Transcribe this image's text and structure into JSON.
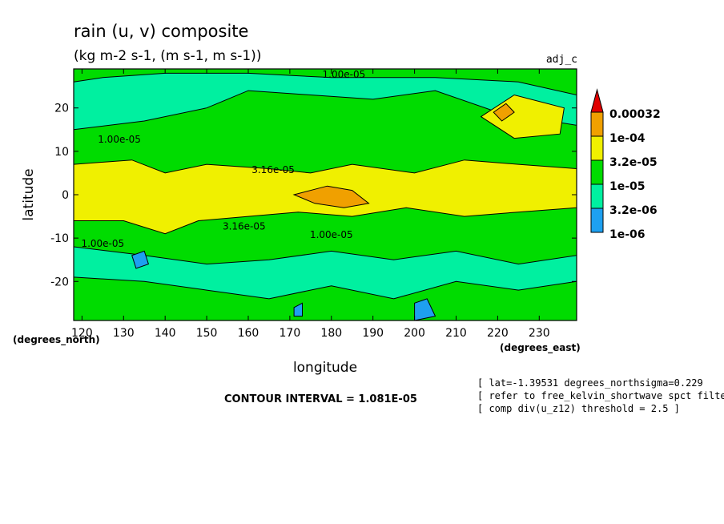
{
  "chart_data": {
    "type": "heatmap",
    "title": "rain (u, v) composite",
    "subtitle": "(kg m-2 s-1, (m s-1, m s-1))",
    "dataset_label": "adj_c",
    "xlabel": "longitude",
    "ylabel": "latitude",
    "x_unit_label": "(degrees_east)",
    "y_unit_label": "(degrees_north)",
    "xlim": [
      118,
      239
    ],
    "ylim": [
      -29,
      29
    ],
    "x_ticks": [
      120,
      130,
      140,
      150,
      160,
      170,
      180,
      190,
      200,
      210,
      220,
      230
    ],
    "y_ticks": [
      {
        "value": 20,
        "label": "20"
      },
      {
        "value": 10,
        "label": "10"
      },
      {
        "value": 0,
        "label": "0"
      },
      {
        "value": -10,
        "label": "-10"
      },
      {
        "value": -20,
        "label": "-20"
      }
    ],
    "levels": [
      "1e-06",
      "3.2e-06",
      "1e-05",
      "3.2e-05",
      "1e-04",
      "0.00032"
    ],
    "level_values": [
      1e-06,
      3.2e-06,
      1e-05,
      3.2e-05,
      0.0001,
      0.00032
    ],
    "colors": {
      "band_1e-06": "#1ea0f0",
      "band_3.2e-06": "#00f0a0",
      "band_1e-05": "#00dc00",
      "band_3.2e-05": "#f0f000",
      "band_1e-04": "#f0a000",
      "band_above": "#e00000"
    },
    "base_color": "#00dc00",
    "bands": [
      {
        "name": "north-teal",
        "color": "#00f0a0",
        "points": [
          [
            118,
            15
          ],
          [
            135,
            17
          ],
          [
            150,
            20
          ],
          [
            160,
            24
          ],
          [
            175,
            23
          ],
          [
            190,
            22
          ],
          [
            205,
            24
          ],
          [
            220,
            19
          ],
          [
            239,
            16
          ],
          [
            239,
            23
          ],
          [
            225,
            26
          ],
          [
            205,
            27
          ],
          [
            180,
            27
          ],
          [
            160,
            28
          ],
          [
            140,
            28
          ],
          [
            125,
            27
          ],
          [
            118,
            26
          ]
        ]
      },
      {
        "name": "south-teal",
        "color": "#00f0a0",
        "points": [
          [
            118,
            -12
          ],
          [
            135,
            -14
          ],
          [
            150,
            -16
          ],
          [
            165,
            -15
          ],
          [
            180,
            -13
          ],
          [
            195,
            -15
          ],
          [
            210,
            -13
          ],
          [
            225,
            -16
          ],
          [
            239,
            -14
          ],
          [
            239,
            -20
          ],
          [
            225,
            -22
          ],
          [
            210,
            -20
          ],
          [
            195,
            -24
          ],
          [
            180,
            -21
          ],
          [
            165,
            -24
          ],
          [
            150,
            -22
          ],
          [
            135,
            -20
          ],
          [
            118,
            -19
          ]
        ]
      },
      {
        "name": "equatorial-yellow",
        "color": "#f0f000",
        "points": [
          [
            118,
            7
          ],
          [
            132,
            8
          ],
          [
            140,
            5
          ],
          [
            150,
            7
          ],
          [
            165,
            6
          ],
          [
            175,
            5
          ],
          [
            185,
            7
          ],
          [
            200,
            5
          ],
          [
            212,
            8
          ],
          [
            225,
            7
          ],
          [
            239,
            6
          ],
          [
            239,
            -3
          ],
          [
            225,
            -4
          ],
          [
            212,
            -5
          ],
          [
            198,
            -3
          ],
          [
            185,
            -5
          ],
          [
            172,
            -4
          ],
          [
            160,
            -5
          ],
          [
            148,
            -6
          ],
          [
            140,
            -9
          ],
          [
            130,
            -6
          ],
          [
            118,
            -6
          ]
        ]
      },
      {
        "name": "northeast-yellow",
        "color": "#f0f000",
        "points": [
          [
            216,
            18
          ],
          [
            224,
            23
          ],
          [
            236,
            20
          ],
          [
            235,
            14
          ],
          [
            224,
            13
          ]
        ]
      },
      {
        "name": "equatorial-orange",
        "color": "#f0a000",
        "points": [
          [
            171,
            0
          ],
          [
            179,
            2
          ],
          [
            185,
            1
          ],
          [
            189,
            -2
          ],
          [
            183,
            -3
          ],
          [
            176,
            -2
          ]
        ]
      },
      {
        "name": "north-orange-spot",
        "color": "#f0a000",
        "points": [
          [
            219,
            19
          ],
          [
            222,
            21
          ],
          [
            224,
            19
          ],
          [
            221,
            17
          ]
        ]
      },
      {
        "name": "blue-spot-1",
        "color": "#1ea0f0",
        "points": [
          [
            132,
            -14
          ],
          [
            135,
            -13
          ],
          [
            136,
            -16
          ],
          [
            133,
            -17
          ]
        ]
      },
      {
        "name": "blue-spot-2",
        "color": "#1ea0f0",
        "points": [
          [
            200,
            -25
          ],
          [
            203,
            -24
          ],
          [
            205,
            -28
          ],
          [
            200,
            -29
          ]
        ]
      },
      {
        "name": "blue-spot-3",
        "color": "#1ea0f0",
        "points": [
          [
            171,
            -26
          ],
          [
            173,
            -25
          ],
          [
            173,
            -28
          ],
          [
            171,
            -28
          ]
        ]
      }
    ],
    "contour_labels": [
      {
        "text": "1.00e-05",
        "x": 183,
        "y": 27
      },
      {
        "text": "1.00e-05",
        "x": 129,
        "y": 12
      },
      {
        "text": "3.16e-05",
        "x": 166,
        "y": 5
      },
      {
        "text": "3.16e-05",
        "x": 159,
        "y": -8
      },
      {
        "text": "1.00e-05",
        "x": 125,
        "y": -12
      },
      {
        "text": "1.00e-05",
        "x": 180,
        "y": -10
      }
    ],
    "contour_interval": "CONTOUR INTERVAL = 1.081E-05",
    "notes": [
      "[ lat=-1.39531 degrees_northsigma=0.229",
      "[ refer to free_kelvin_shortwave spct filteri",
      "[ comp div(u_z12) threshold = 2.5 ]"
    ]
  }
}
